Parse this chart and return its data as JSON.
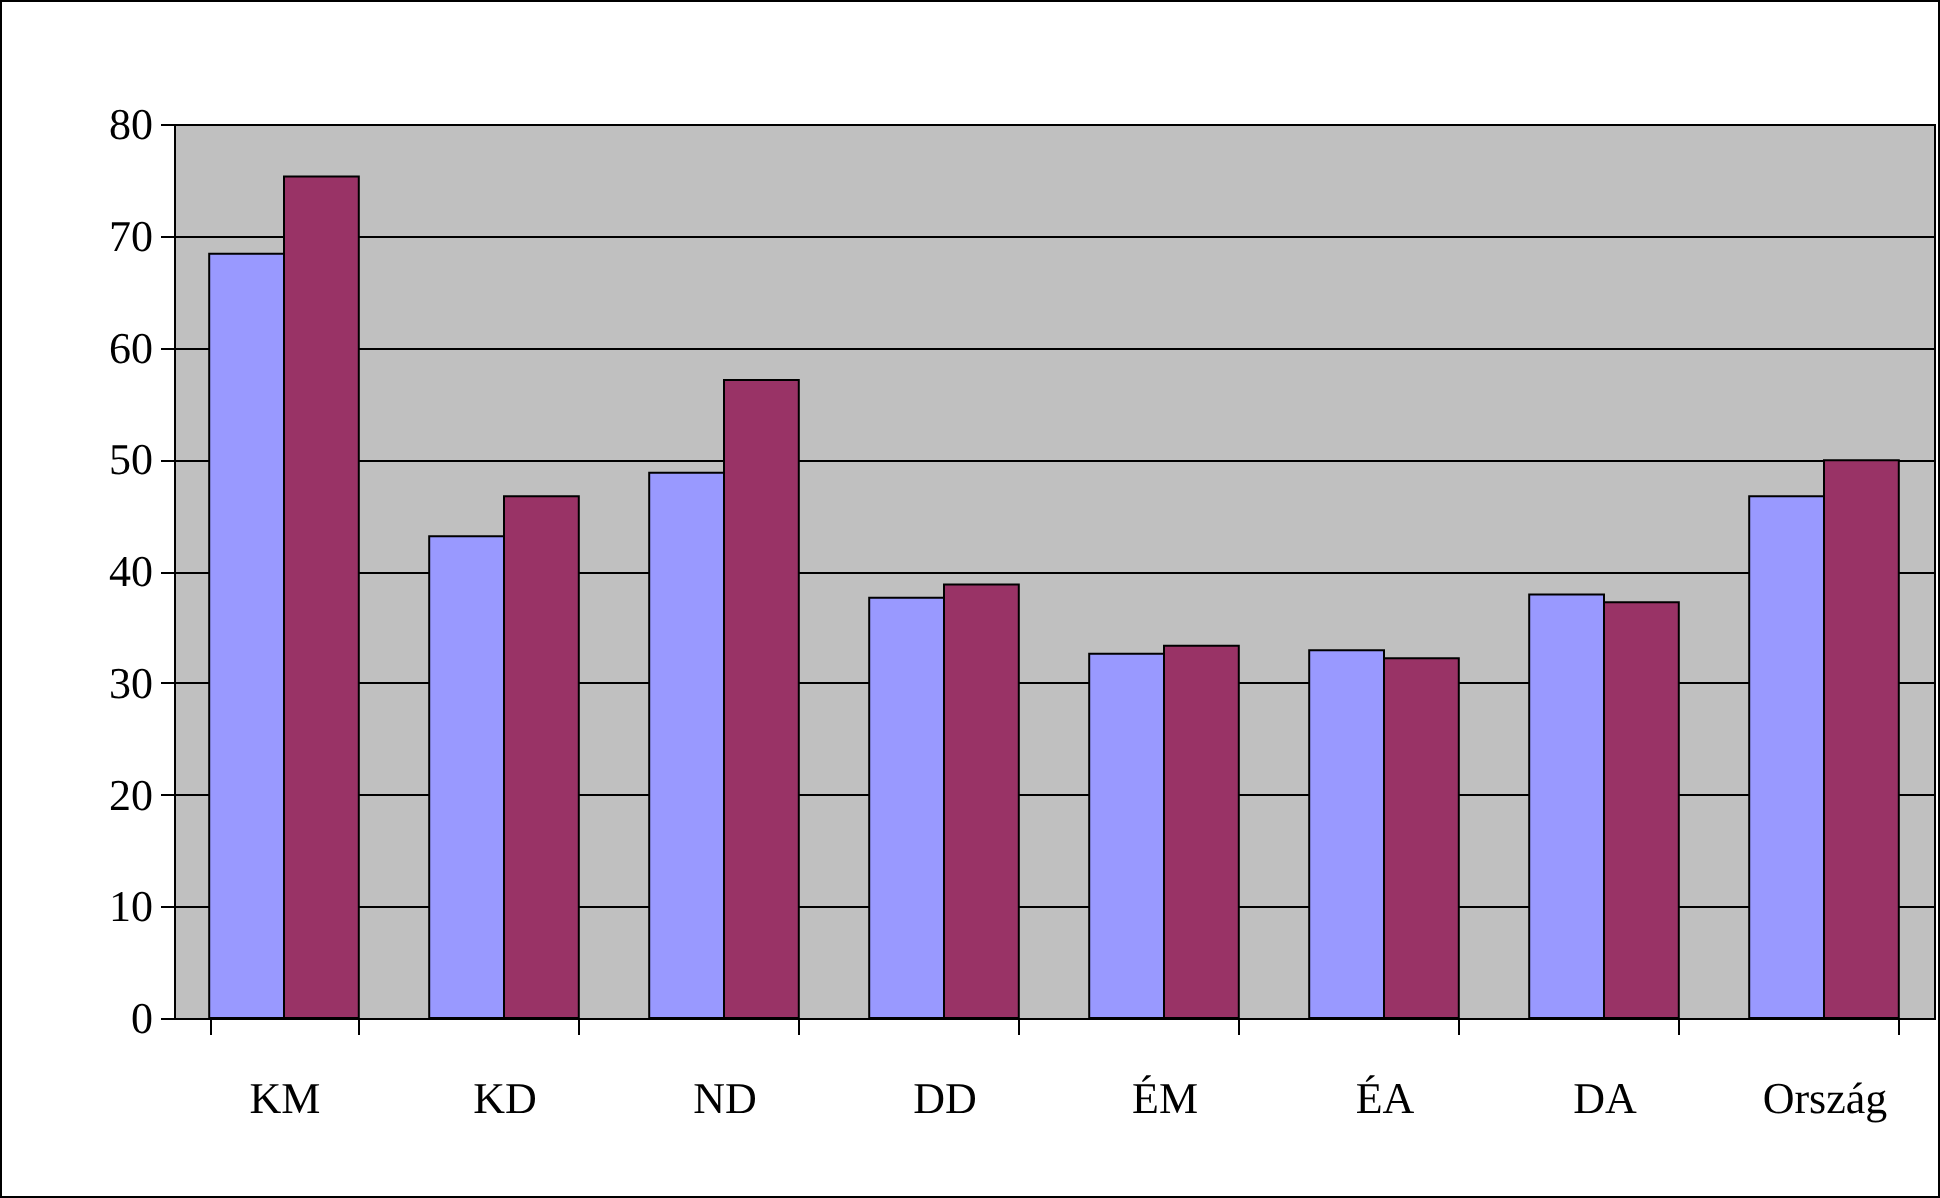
{
  "chart_data": {
    "type": "bar",
    "categories": [
      "KM",
      "KD",
      "ND",
      "DD",
      "ÉM",
      "ÉA",
      "DA",
      "Ország"
    ],
    "series": [
      {
        "color": "#9999ff",
        "values": [
          68.4,
          43.1,
          48.8,
          37.6,
          32.6,
          32.9,
          37.9,
          46.7
        ]
      },
      {
        "color": "#993366",
        "values": [
          75.3,
          46.7,
          57.1,
          38.8,
          33.3,
          32.2,
          37.2,
          49.9
        ]
      }
    ],
    "ylim": [
      0,
      80
    ],
    "yticks": [
      0,
      10,
      20,
      30,
      40,
      50,
      60,
      70,
      80
    ],
    "grid": "y"
  }
}
